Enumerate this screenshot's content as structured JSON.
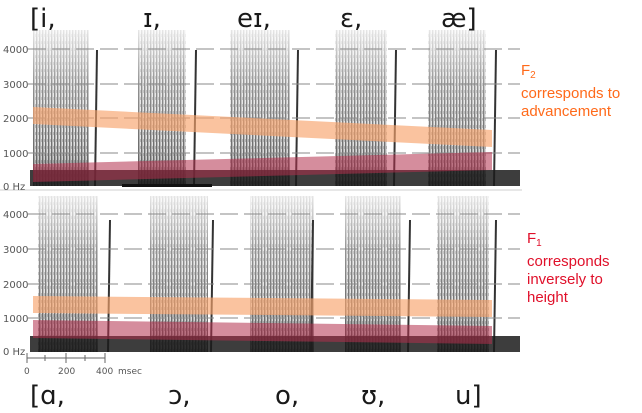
{
  "top_vowels": [
    "[i,",
    "ɪ,",
    "eɪ,",
    "ɛ,",
    "æ]"
  ],
  "bottom_vowels": [
    "[ɑ,",
    "ɔ,",
    "o,",
    "ʊ,",
    "u]"
  ],
  "freq_ticks": [
    "4000",
    "3000",
    "2000",
    "1000",
    "0 Hz"
  ],
  "time_scale": {
    "ticks": [
      "0",
      "200",
      "400"
    ],
    "unit": "msec"
  },
  "annotations": {
    "f2": {
      "symbol": "F",
      "subscript": "2",
      "line1": "corresponds to",
      "line2": "advancement"
    },
    "f1": {
      "symbol": "F",
      "subscript": "1",
      "line1": "corresponds",
      "line2": "inversely to",
      "line3": "height"
    }
  },
  "colors": {
    "f2_band": "#f7a36b",
    "f1_band": "#b3304d",
    "f2_text": "#ff6a1a",
    "f1_text": "#e0102a"
  }
}
